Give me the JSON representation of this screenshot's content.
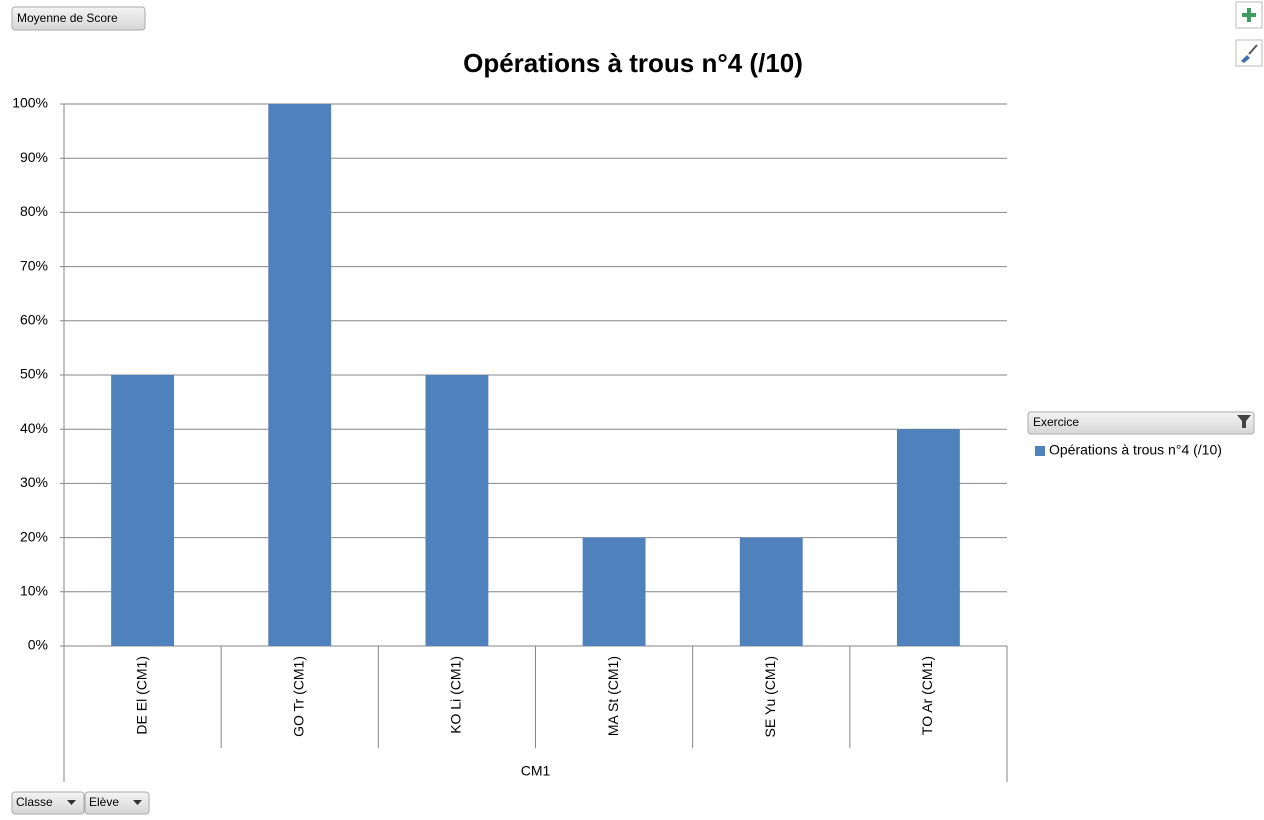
{
  "chart_data": {
    "type": "bar",
    "title": "Opérations à trous n°4 (/10)",
    "categories": [
      "DE El (CM1)",
      "GO Tr (CM1)",
      "KO Li (CM1)",
      "MA St (CM1)",
      "SE Yu (CM1)",
      "TO Ar (CM1)"
    ],
    "group_label": "CM1",
    "series": [
      {
        "name": "Opérations à trous n°4 (/10)",
        "color": "#4f81bd",
        "values": [
          50,
          100,
          50,
          20,
          20,
          40
        ]
      }
    ],
    "ylim": [
      0,
      100
    ],
    "yticks": [
      {
        "value": 0,
        "label": "0%"
      },
      {
        "value": 10,
        "label": "10%"
      },
      {
        "value": 20,
        "label": "20%"
      },
      {
        "value": 30,
        "label": "30%"
      },
      {
        "value": 40,
        "label": "40%"
      },
      {
        "value": 50,
        "label": "50%"
      },
      {
        "value": 60,
        "label": "60%"
      },
      {
        "value": 70,
        "label": "70%"
      },
      {
        "value": 80,
        "label": "80%"
      },
      {
        "value": 90,
        "label": "90%"
      },
      {
        "value": 100,
        "label": "100%"
      }
    ],
    "grid": true,
    "legend": "right",
    "field_buttons": {
      "value": "Moyenne de Score",
      "legend": "Exercice",
      "axis": [
        "Classe",
        "Elève"
      ]
    }
  }
}
